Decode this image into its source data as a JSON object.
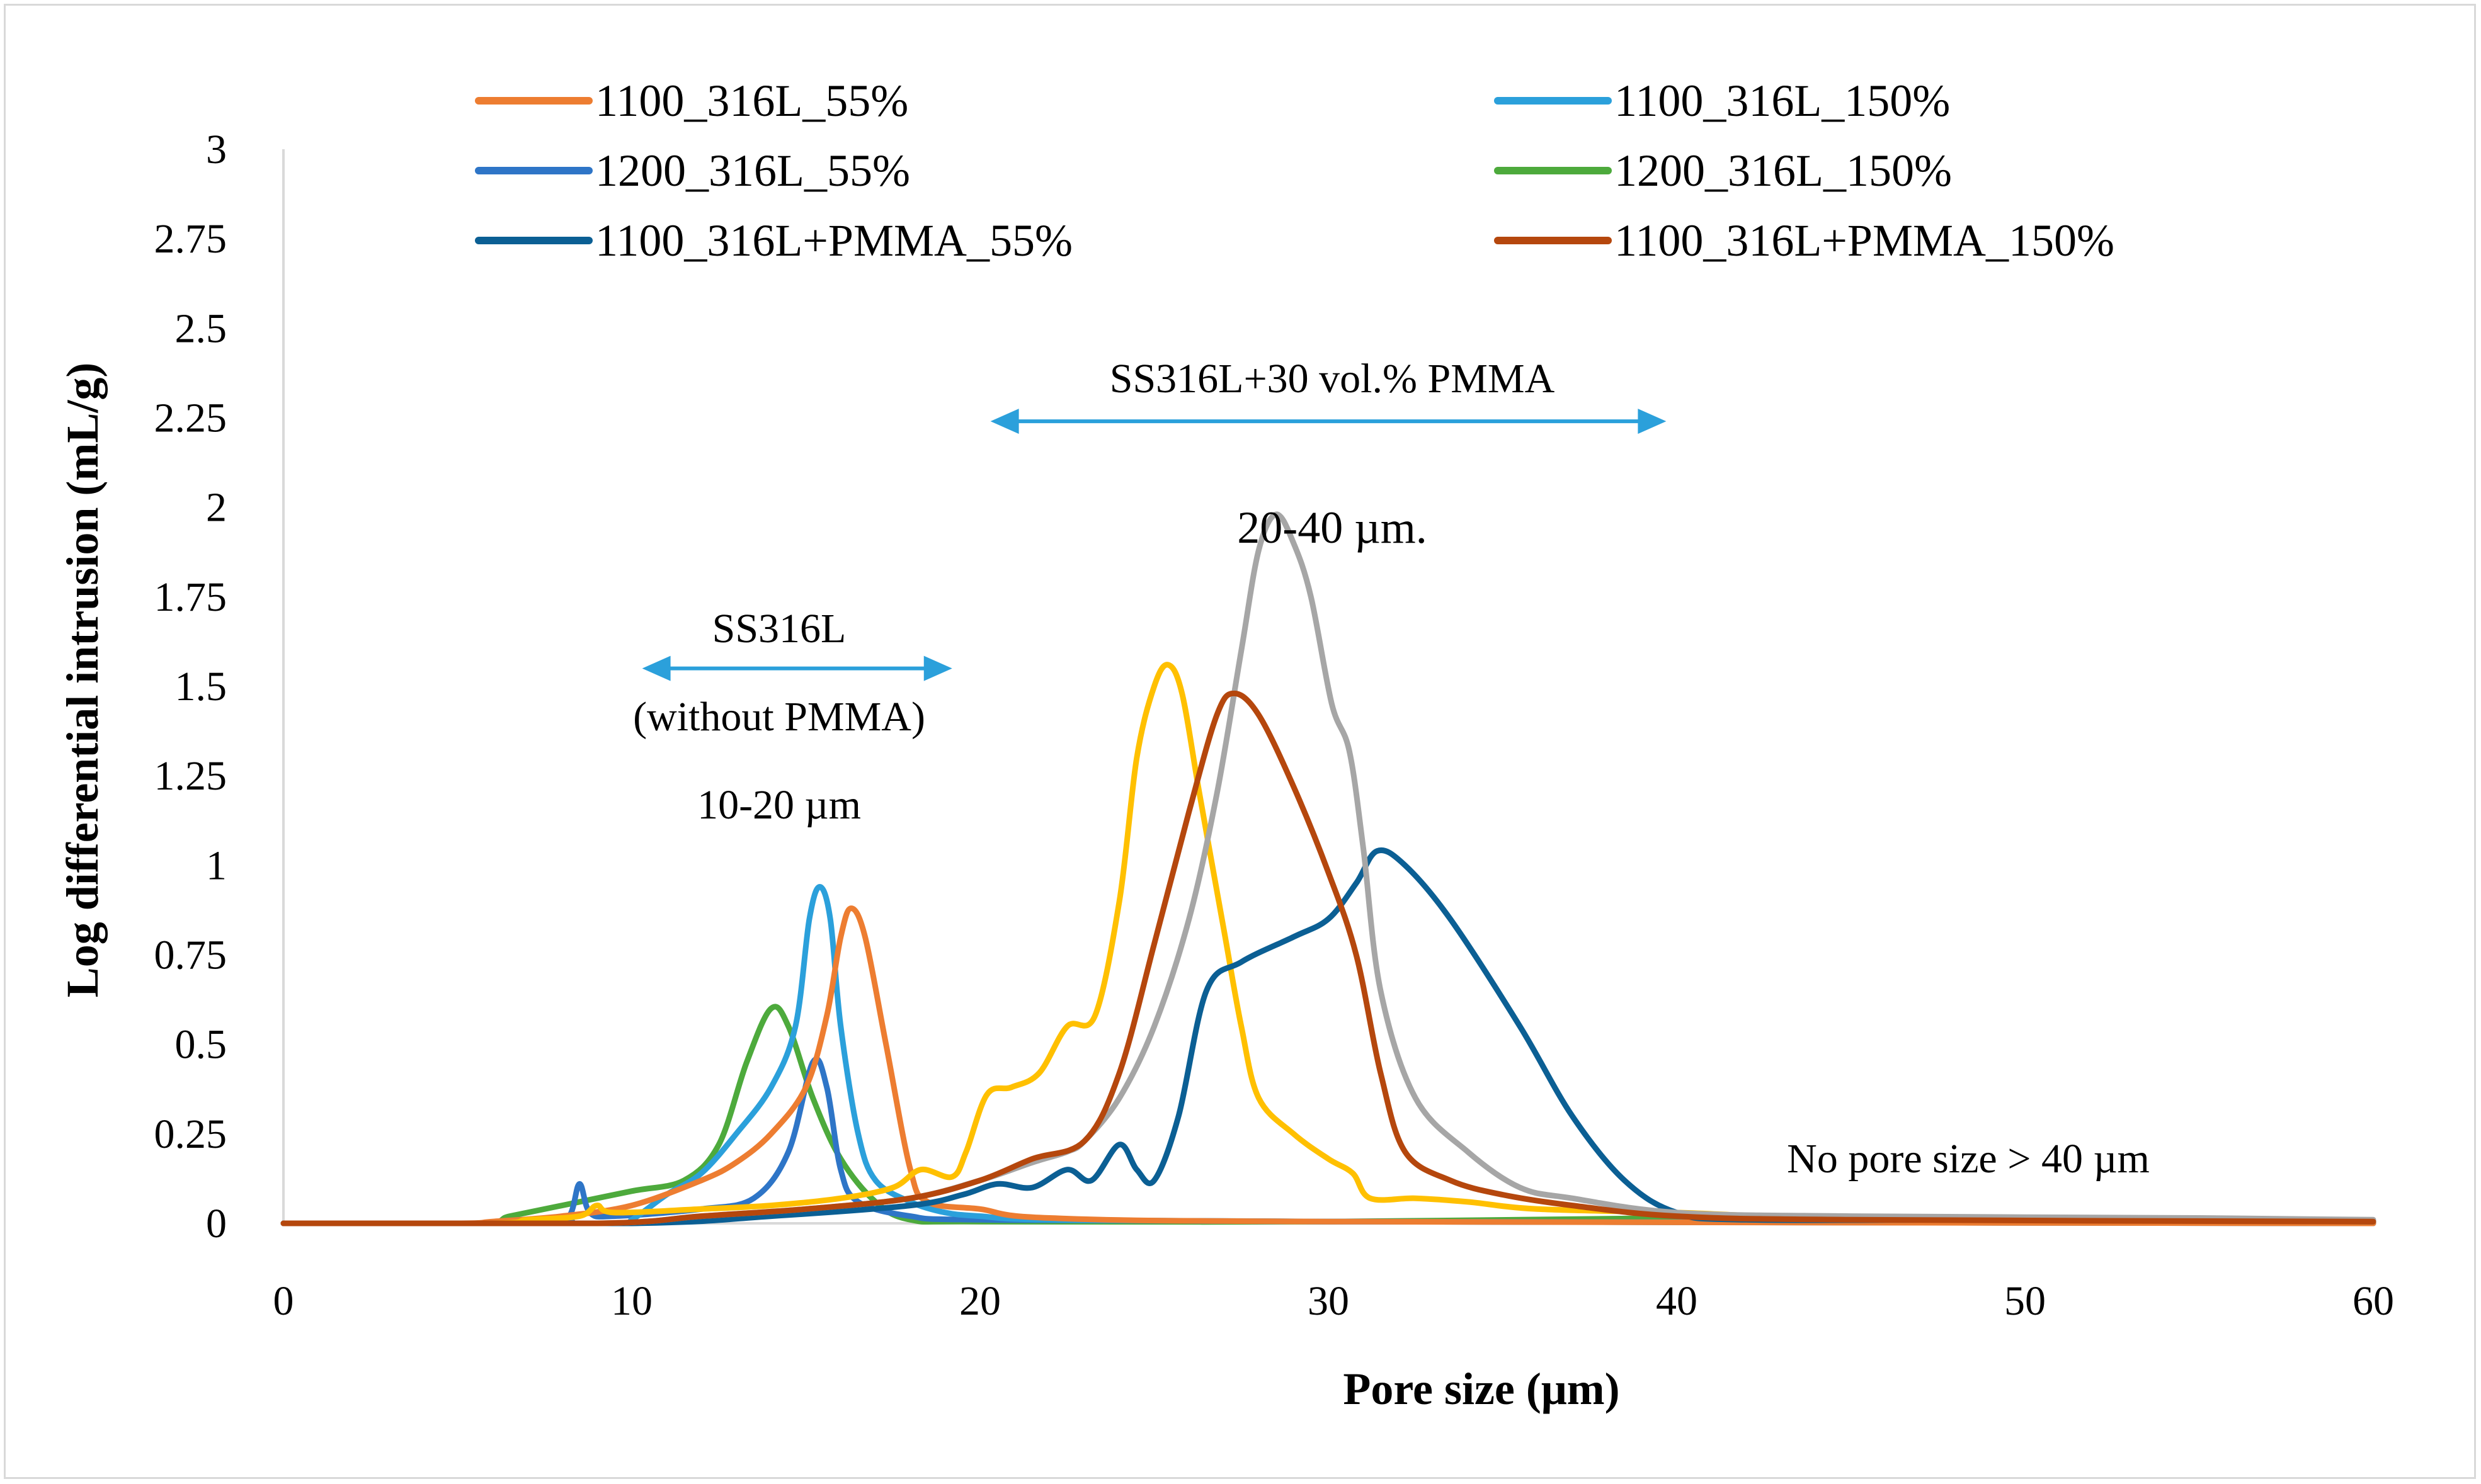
{
  "chart_data": {
    "type": "line",
    "title": "",
    "xlabel": "Pore size (μm)",
    "ylabel": "Log differential intrusion (mL/g)",
    "xlim": [
      0,
      60
    ],
    "ylim": [
      0,
      3
    ],
    "xticks": [
      0,
      10,
      20,
      30,
      40,
      50,
      60
    ],
    "xtick_labels": [
      "0",
      "10",
      "20",
      "30",
      "40",
      "50",
      "60"
    ],
    "yticks": [
      0,
      0.25,
      0.5,
      0.75,
      1,
      1.25,
      1.5,
      1.75,
      2,
      2.25,
      2.5,
      2.75,
      3
    ],
    "ytick_labels": [
      "0",
      "0.25",
      "0.5",
      "0.75",
      "1",
      "1.25",
      "1.5",
      "1.75",
      "2",
      "2.25",
      "2.5",
      "2.75",
      "3"
    ],
    "grid": false,
    "legend_position": "top",
    "series": [
      {
        "name": "1100_316L_55%",
        "color": "#ED7D31",
        "in_legend": true,
        "points": [
          [
            0,
            0
          ],
          [
            5,
            0
          ],
          [
            6,
            0.005
          ],
          [
            8,
            0.02
          ],
          [
            10,
            0.05
          ],
          [
            12,
            0.12
          ],
          [
            13,
            0.17
          ],
          [
            14,
            0.25
          ],
          [
            15,
            0.38
          ],
          [
            15.6,
            0.58
          ],
          [
            16,
            0.8
          ],
          [
            16.3,
            0.88
          ],
          [
            16.7,
            0.8
          ],
          [
            17.3,
            0.5
          ],
          [
            18,
            0.15
          ],
          [
            18.5,
            0.06
          ],
          [
            20,
            0.04
          ],
          [
            22,
            0.015
          ],
          [
            30,
            0.005
          ],
          [
            60,
            0
          ]
        ]
      },
      {
        "name": "1100_316L_150%",
        "color": "#2BA0DB",
        "in_legend": true,
        "points": [
          [
            0,
            0
          ],
          [
            9.5,
            0
          ],
          [
            10,
            0.01
          ],
          [
            11,
            0.08
          ],
          [
            12,
            0.14
          ],
          [
            13,
            0.25
          ],
          [
            14,
            0.38
          ],
          [
            14.7,
            0.55
          ],
          [
            15.1,
            0.85
          ],
          [
            15.4,
            0.94
          ],
          [
            15.7,
            0.85
          ],
          [
            16,
            0.55
          ],
          [
            16.5,
            0.25
          ],
          [
            17,
            0.12
          ],
          [
            18,
            0.06
          ],
          [
            19,
            0.03
          ],
          [
            20,
            0.02
          ],
          [
            22,
            0.01
          ],
          [
            30,
            0.005
          ],
          [
            60,
            0
          ]
        ]
      },
      {
        "name": "1200_316L_55%",
        "color": "#2E75C7",
        "in_legend": true,
        "points": [
          [
            0,
            0
          ],
          [
            7.5,
            0
          ],
          [
            8.2,
            0.02
          ],
          [
            8.5,
            0.11
          ],
          [
            8.8,
            0.03
          ],
          [
            9.5,
            0.02
          ],
          [
            12,
            0.04
          ],
          [
            13.5,
            0.07
          ],
          [
            14.5,
            0.2
          ],
          [
            15.2,
            0.45
          ],
          [
            15.6,
            0.38
          ],
          [
            16,
            0.15
          ],
          [
            16.5,
            0.06
          ],
          [
            18,
            0.02
          ],
          [
            20,
            0.01
          ],
          [
            30,
            0.005
          ],
          [
            60,
            0
          ]
        ]
      },
      {
        "name": "1200_316L_150%",
        "color": "#4DAA3C",
        "in_legend": true,
        "points": [
          [
            0,
            0
          ],
          [
            5.5,
            0
          ],
          [
            6.5,
            0.02
          ],
          [
            8,
            0.05
          ],
          [
            10,
            0.09
          ],
          [
            11.5,
            0.12
          ],
          [
            12.5,
            0.22
          ],
          [
            13.3,
            0.45
          ],
          [
            14,
            0.6
          ],
          [
            14.5,
            0.55
          ],
          [
            15.2,
            0.35
          ],
          [
            16,
            0.18
          ],
          [
            17,
            0.06
          ],
          [
            18,
            0.01
          ],
          [
            20,
            0.005
          ],
          [
            30,
            0.005
          ],
          [
            40,
            0.015
          ],
          [
            42,
            0.01
          ],
          [
            60,
            0.005
          ]
        ]
      },
      {
        "name": "1100_316L+PMMA_55%",
        "color": "#0B5F94",
        "in_legend": true,
        "points": [
          [
            0,
            0
          ],
          [
            10,
            0
          ],
          [
            14,
            0.02
          ],
          [
            18,
            0.05
          ],
          [
            19.5,
            0.08
          ],
          [
            20.5,
            0.11
          ],
          [
            21.5,
            0.1
          ],
          [
            22.5,
            0.15
          ],
          [
            23.2,
            0.12
          ],
          [
            24,
            0.22
          ],
          [
            24.5,
            0.15
          ],
          [
            25,
            0.12
          ],
          [
            25.7,
            0.3
          ],
          [
            26.5,
            0.65
          ],
          [
            27.5,
            0.73
          ],
          [
            29,
            0.8
          ],
          [
            30,
            0.85
          ],
          [
            30.8,
            0.95
          ],
          [
            31.4,
            1.04
          ],
          [
            32.2,
            1.0
          ],
          [
            33.5,
            0.85
          ],
          [
            35.5,
            0.55
          ],
          [
            37,
            0.3
          ],
          [
            38.5,
            0.12
          ],
          [
            40,
            0.03
          ],
          [
            42,
            0.01
          ],
          [
            50,
            0.01
          ],
          [
            60,
            0.005
          ]
        ]
      },
      {
        "name": "1100_316L+PMMA_150%",
        "color": "#B5470D",
        "in_legend": true,
        "points": [
          [
            0,
            0
          ],
          [
            9,
            0
          ],
          [
            12,
            0.02
          ],
          [
            15,
            0.04
          ],
          [
            18,
            0.07
          ],
          [
            20,
            0.12
          ],
          [
            21.5,
            0.18
          ],
          [
            23,
            0.23
          ],
          [
            24,
            0.42
          ],
          [
            25,
            0.78
          ],
          [
            26,
            1.15
          ],
          [
            26.8,
            1.42
          ],
          [
            27.3,
            1.48
          ],
          [
            28,
            1.42
          ],
          [
            29,
            1.22
          ],
          [
            30,
            0.98
          ],
          [
            30.8,
            0.75
          ],
          [
            31.5,
            0.42
          ],
          [
            32.2,
            0.2
          ],
          [
            33.5,
            0.12
          ],
          [
            35,
            0.08
          ],
          [
            37,
            0.05
          ],
          [
            40,
            0.02
          ],
          [
            45,
            0.01
          ],
          [
            60,
            0.005
          ]
        ]
      },
      {
        "name": "",
        "color": "#A6A6A6",
        "in_legend": false,
        "points": [
          [
            0,
            0
          ],
          [
            9,
            0
          ],
          [
            12,
            0.02
          ],
          [
            15,
            0.04
          ],
          [
            18,
            0.07
          ],
          [
            20,
            0.12
          ],
          [
            21.5,
            0.17
          ],
          [
            22.5,
            0.2
          ],
          [
            23,
            0.23
          ],
          [
            24,
            0.35
          ],
          [
            25,
            0.55
          ],
          [
            26,
            0.85
          ],
          [
            26.8,
            1.2
          ],
          [
            27.5,
            1.6
          ],
          [
            28,
            1.88
          ],
          [
            28.5,
            1.98
          ],
          [
            29,
            1.9
          ],
          [
            29.5,
            1.75
          ],
          [
            30.1,
            1.45
          ],
          [
            30.6,
            1.32
          ],
          [
            31,
            1.05
          ],
          [
            31.5,
            0.65
          ],
          [
            32.5,
            0.35
          ],
          [
            34,
            0.2
          ],
          [
            35.5,
            0.1
          ],
          [
            37,
            0.07
          ],
          [
            40,
            0.03
          ],
          [
            45,
            0.02
          ],
          [
            55,
            0.015
          ],
          [
            60,
            0.01
          ]
        ]
      },
      {
        "name": "",
        "color": "#FFC000",
        "in_legend": false,
        "points": [
          [
            0,
            0
          ],
          [
            6,
            0
          ],
          [
            7,
            0.01
          ],
          [
            8.5,
            0.02
          ],
          [
            9,
            0.05
          ],
          [
            9.5,
            0.03
          ],
          [
            12,
            0.04
          ],
          [
            14,
            0.05
          ],
          [
            16,
            0.07
          ],
          [
            17.5,
            0.1
          ],
          [
            18.3,
            0.15
          ],
          [
            19.2,
            0.13
          ],
          [
            19.6,
            0.2
          ],
          [
            20.2,
            0.36
          ],
          [
            20.9,
            0.38
          ],
          [
            21.7,
            0.42
          ],
          [
            22.5,
            0.55
          ],
          [
            23.3,
            0.58
          ],
          [
            24,
            0.9
          ],
          [
            24.5,
            1.3
          ],
          [
            25,
            1.5
          ],
          [
            25.4,
            1.56
          ],
          [
            25.8,
            1.48
          ],
          [
            26.3,
            1.2
          ],
          [
            27,
            0.82
          ],
          [
            27.5,
            0.55
          ],
          [
            28,
            0.35
          ],
          [
            29,
            0.25
          ],
          [
            30,
            0.18
          ],
          [
            30.7,
            0.14
          ],
          [
            31.2,
            0.07
          ],
          [
            32.5,
            0.07
          ],
          [
            34,
            0.06
          ],
          [
            36,
            0.04
          ],
          [
            40,
            0.03
          ],
          [
            45,
            0.015
          ],
          [
            60,
            0.005
          ]
        ]
      }
    ],
    "annotations": [
      {
        "id": "pmma_range",
        "text": "SS316L+30 vol.% PMMA",
        "arrow_from": 20.3,
        "arrow_to": 39.7,
        "y": 2.24,
        "arrow_color": "#2BA0DB"
      },
      {
        "id": "pmma_size",
        "text": "20-40 µm."
      },
      {
        "id": "ss_range_1",
        "text": "SS316L",
        "arrow_from": 10.3,
        "arrow_to": 19.2,
        "y": 1.55,
        "arrow_color": "#2BA0DB"
      },
      {
        "id": "ss_range_2",
        "text": "(without PMMA)"
      },
      {
        "id": "ss_size",
        "text": "10-20 µm"
      },
      {
        "id": "no_pore",
        "text": "No pore size > 40 µm"
      }
    ]
  }
}
